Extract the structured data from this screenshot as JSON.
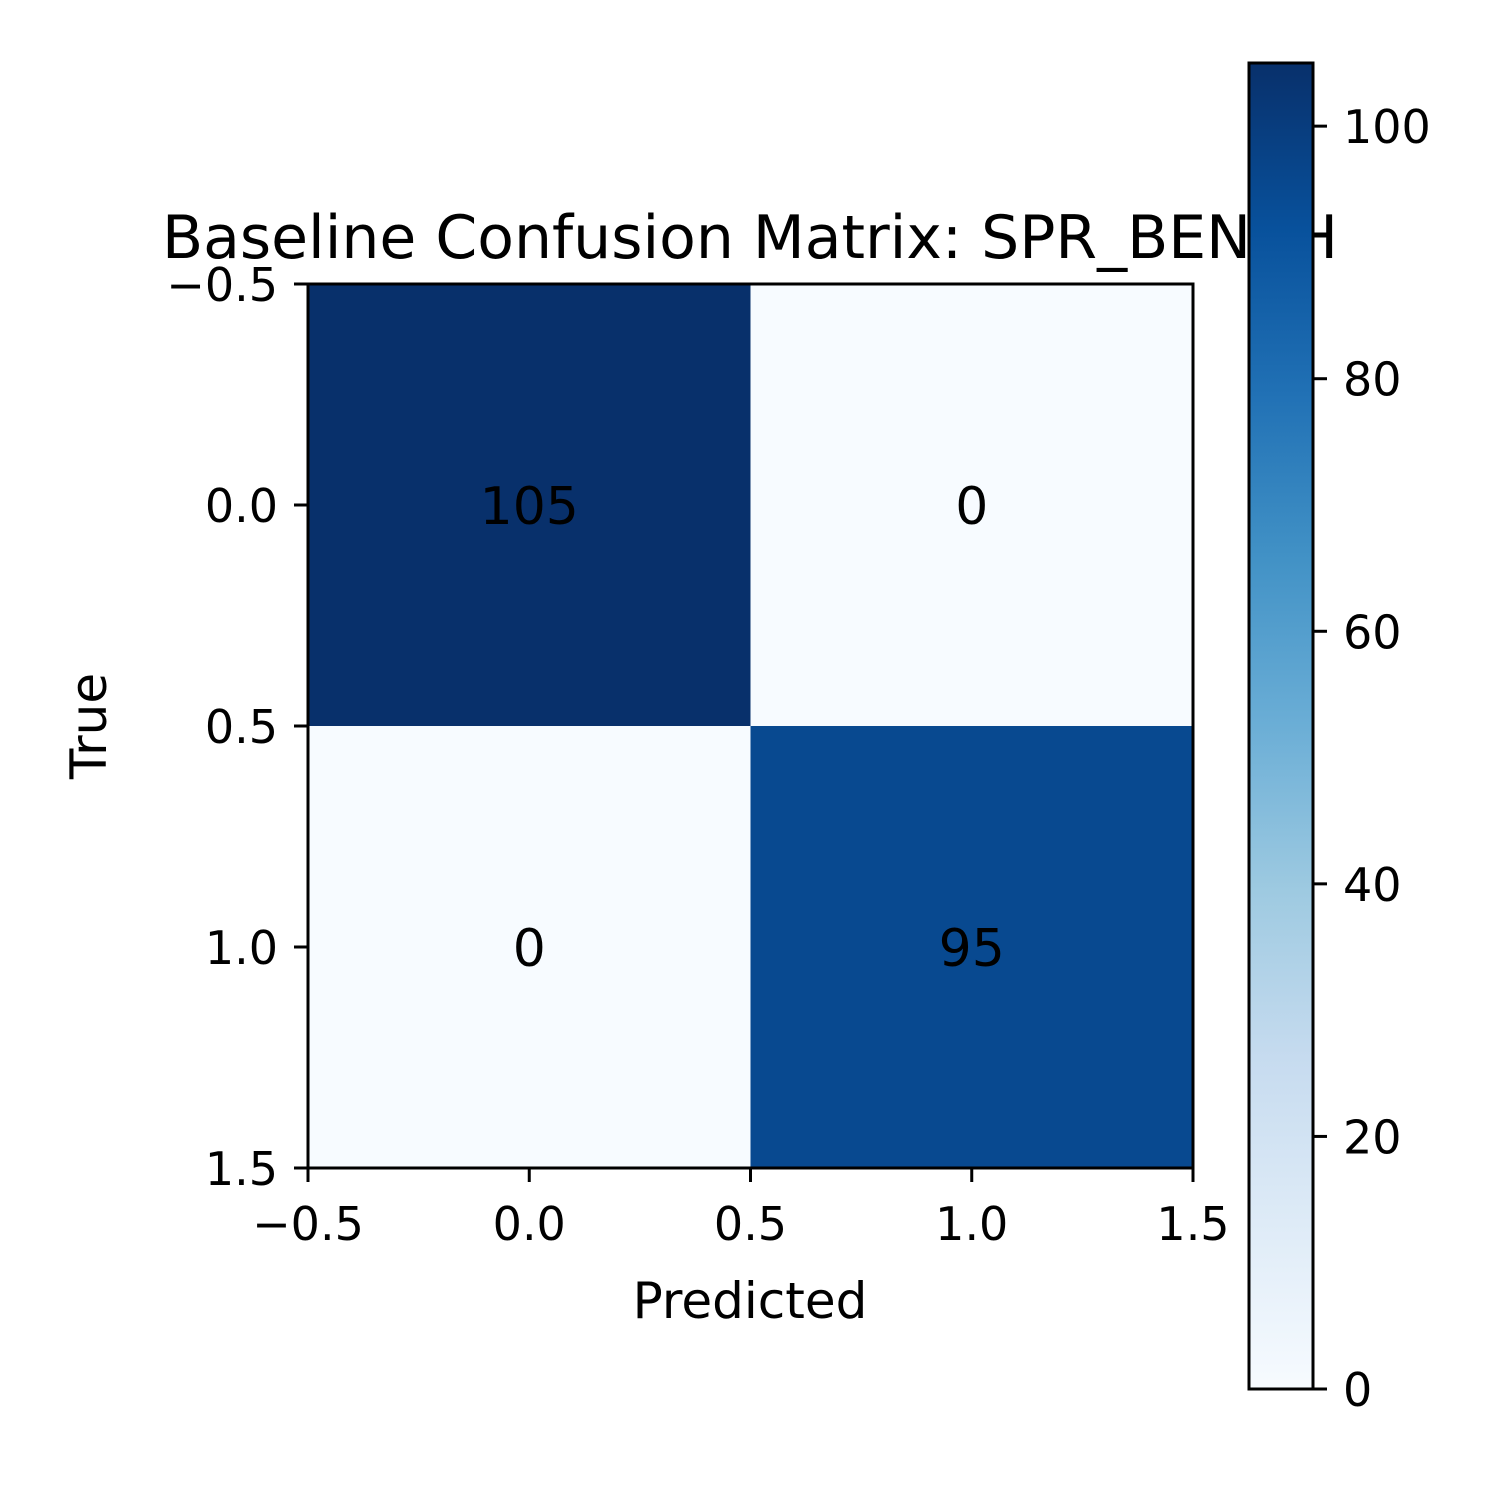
{
  "chart_data": {
    "type": "heatmap",
    "title": "Baseline Confusion Matrix: SPR_BENCH",
    "xlabel": "Predicted",
    "ylabel": "True",
    "matrix": [
      [
        105,
        0
      ],
      [
        0,
        95
      ]
    ],
    "xlim": [
      -0.5,
      1.5
    ],
    "ylim": [
      1.5,
      -0.5
    ],
    "xticks": [
      "−0.5",
      "0.0",
      "0.5",
      "1.0",
      "1.5"
    ],
    "yticks": [
      "−0.5",
      "0.0",
      "0.5",
      "1.0",
      "1.5"
    ],
    "colormap": "Blues",
    "colorbar": {
      "min": 0,
      "max": 105,
      "ticks": [
        "0",
        "20",
        "40",
        "60",
        "80",
        "100"
      ]
    },
    "grid": false
  }
}
